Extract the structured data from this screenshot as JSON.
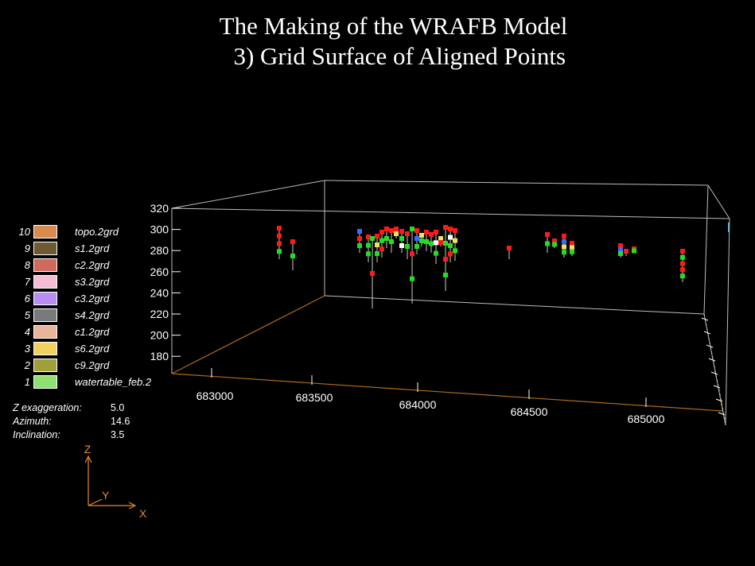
{
  "title": {
    "line1": "The Making of the WRAFB Model",
    "line2": "  3) Grid Surface of Aligned Points"
  },
  "legend": [
    {
      "num": "10",
      "name": "topo.2grd",
      "color": "#d98a4e"
    },
    {
      "num": "9",
      "name": "s1.2grd",
      "color": "#6e5a32"
    },
    {
      "num": "8",
      "name": "c2.2grd",
      "color": "#d06a5c"
    },
    {
      "num": "7",
      "name": "s3.2grd",
      "color": "#f3bdd6"
    },
    {
      "num": "6",
      "name": "c3.2grd",
      "color": "#b88cf0"
    },
    {
      "num": "5",
      "name": "s4.2grd",
      "color": "#7a7a7a"
    },
    {
      "num": "4",
      "name": "c1.2grd",
      "color": "#e8b49a"
    },
    {
      "num": "3",
      "name": "s6.2grd",
      "color": "#f0d060"
    },
    {
      "num": "2",
      "name": "c9.2grd",
      "color": "#9ea03a"
    },
    {
      "num": "1",
      "name": "watertable_feb.2",
      "color": "#8ee070"
    }
  ],
  "params": [
    {
      "label": "Z  exaggeration:",
      "value": "5.0"
    },
    {
      "label": "Azimuth:",
      "value": "14.6"
    },
    {
      "label": "Inclination:",
      "value": "3.5"
    }
  ],
  "axes_indicator": {
    "z": "Z",
    "y": "Y",
    "x": "X",
    "color": "#e58a2e"
  },
  "box_colors": {
    "edges": "#bdbdbd",
    "floor_front": "#b06a1e",
    "point_red": "#ff1a1a",
    "point_green": "#22dd22",
    "stem": "#cccccc"
  },
  "chart_data": {
    "type": "scatter",
    "x_ticks": [
      "683000",
      "683500",
      "684000",
      "684500",
      "685000"
    ],
    "z_ticks": [
      "320",
      "300",
      "280",
      "260",
      "240",
      "220",
      "200",
      "180"
    ]
  }
}
